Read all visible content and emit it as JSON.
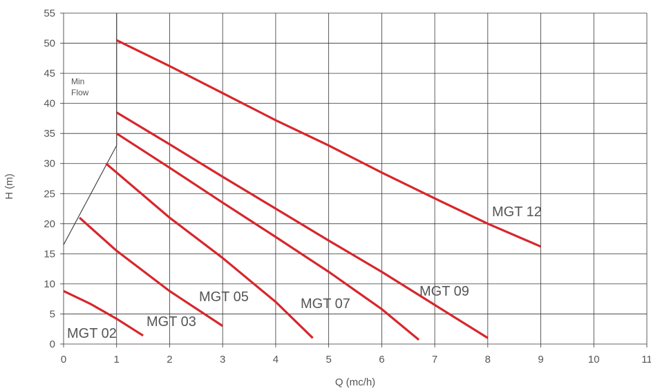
{
  "chart_data": {
    "type": "line",
    "xlabel": "Q (mc/h)",
    "ylabel": "H (m)",
    "xlim": [
      0,
      11
    ],
    "ylim": [
      0,
      55
    ],
    "x_ticks": [
      0,
      1,
      2,
      3,
      4,
      5,
      6,
      7,
      8,
      9,
      10,
      11
    ],
    "y_ticks": [
      0,
      5,
      10,
      15,
      20,
      25,
      30,
      35,
      40,
      45,
      50,
      55
    ],
    "grid": true,
    "series_color": "#d7262b",
    "min_flow_color": "#444444",
    "series": [
      {
        "name": "MGT 02",
        "points": [
          [
            0,
            8.8
          ],
          [
            0.5,
            6.7
          ],
          [
            1.0,
            4.2
          ],
          [
            1.5,
            1.4
          ]
        ]
      },
      {
        "name": "MGT 03",
        "points": [
          [
            0.3,
            21.0
          ],
          [
            1.0,
            15.5
          ],
          [
            2.0,
            8.8
          ],
          [
            3.0,
            3.0
          ]
        ]
      },
      {
        "name": "MGT 05",
        "points": [
          [
            0.8,
            30.0
          ],
          [
            1.0,
            28.5
          ],
          [
            2.0,
            21.0
          ],
          [
            3.0,
            14.3
          ],
          [
            4.0,
            7.0
          ],
          [
            4.7,
            1.0
          ]
        ]
      },
      {
        "name": "MGT 07",
        "points": [
          [
            1.0,
            35.0
          ],
          [
            2.0,
            29.3
          ],
          [
            3.0,
            23.5
          ],
          [
            4.0,
            17.8
          ],
          [
            5.0,
            12.0
          ],
          [
            6.0,
            5.8
          ],
          [
            6.7,
            0.7
          ]
        ]
      },
      {
        "name": "MGT 09",
        "points": [
          [
            1.0,
            38.5
          ],
          [
            2.0,
            33.2
          ],
          [
            3.0,
            27.8
          ],
          [
            4.0,
            22.5
          ],
          [
            5.0,
            17.2
          ],
          [
            6.0,
            12.0
          ],
          [
            7.0,
            6.5
          ],
          [
            8.0,
            1.0
          ]
        ]
      },
      {
        "name": "MGT 12",
        "points": [
          [
            1.0,
            50.5
          ],
          [
            2.0,
            46.2
          ],
          [
            3.0,
            41.7
          ],
          [
            4.0,
            37.2
          ],
          [
            5.0,
            33.0
          ],
          [
            6.0,
            28.5
          ],
          [
            7.0,
            24.2
          ],
          [
            8.0,
            20.0
          ],
          [
            9.0,
            16.2
          ]
        ]
      }
    ],
    "annotations": {
      "min_flow_text": [
        "Min",
        "Flow"
      ],
      "min_flow_line": [
        [
          0,
          16.5
        ],
        [
          1.0,
          33.0
        ],
        [
          1.0,
          55.0
        ]
      ]
    }
  }
}
